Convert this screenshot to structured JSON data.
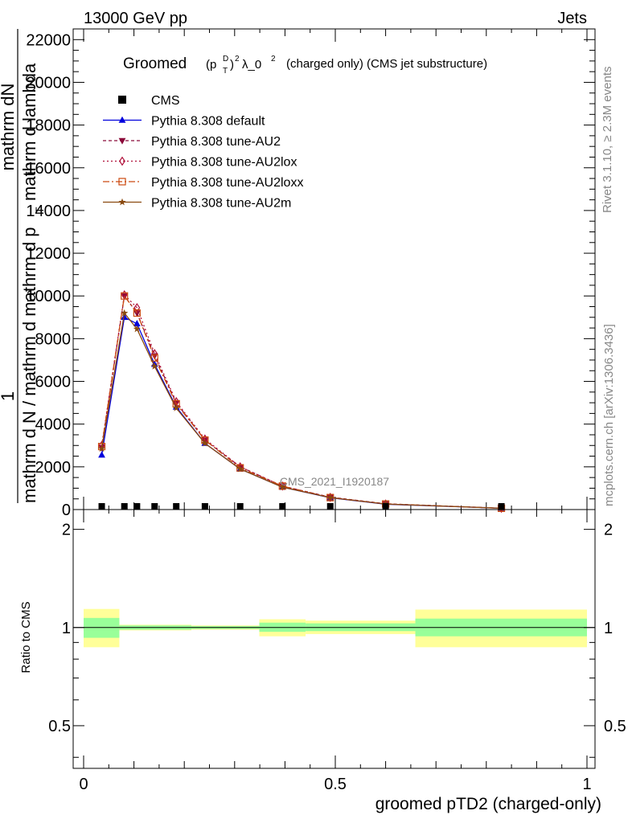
{
  "header": {
    "left": "13000 GeV pp",
    "right": "Jets"
  },
  "plot_title": {
    "prefix": "Groomed",
    "p": "(p",
    "sub": "T",
    "sup": "D",
    "close": ")",
    "sq": "2",
    "lambda": "λ_0",
    "sq2": "2",
    "rest": "(charged only) (CMS jet substructure)"
  },
  "side_labels": {
    "rivet": "Rivet 3.1.10, ≥ 2.3M events",
    "mcplots": "mcplots.cern.ch [arXiv:1306.3436]"
  },
  "watermark": "CMS_2021_I1920187",
  "ylabel_main": {
    "frac_one": "1",
    "denominator": "mathrm d N / mathrm d mathrm d p",
    "sub_T": "T",
    "tail": "mathrm d lambda",
    "numerator": "mathrm dN"
  },
  "ylabel_ratio": "Ratio to CMS",
  "xlabel": "groomed pTD2 (charged-only)",
  "legend": [
    {
      "label": "CMS",
      "color": "#000000",
      "marker": "square",
      "dash": "none"
    },
    {
      "label": "Pythia 8.308 default",
      "color": "#0000dd",
      "marker": "triangle-up",
      "dash": "solid"
    },
    {
      "label": "Pythia 8.308 tune-AU2",
      "color": "#8b0a3a",
      "marker": "triangle-down",
      "dash": "4,3"
    },
    {
      "label": "Pythia 8.308 tune-AU2lox",
      "color": "#b0103a",
      "marker": "diamond-open",
      "dash": "2,3"
    },
    {
      "label": "Pythia 8.308 tune-AU2loxx",
      "color": "#cc4a10",
      "marker": "square-open",
      "dash": "8,3,2,3"
    },
    {
      "label": "Pythia 8.308 tune-AU2m",
      "color": "#8a4a10",
      "marker": "star",
      "dash": "solid"
    }
  ],
  "chart_data": {
    "type": "line",
    "main": {
      "xlim": [
        0,
        1
      ],
      "ylim": [
        0,
        22500
      ],
      "yticks": [
        0,
        2000,
        4000,
        6000,
        8000,
        10000,
        12000,
        14000,
        16000,
        18000,
        20000,
        22000
      ],
      "ytick_labels": [
        "0",
        "2000",
        "4000",
        "6000",
        "8000",
        "10000",
        "12000",
        "14000",
        "16000",
        "18000",
        "20000",
        "22000"
      ]
    },
    "ratio": {
      "xlim": [
        0,
        1
      ],
      "ylim": [
        0.37,
        2.3
      ],
      "log": true,
      "yticks": [
        0.5,
        1,
        2
      ],
      "ytick_labels": [
        "0.5",
        "1",
        "2"
      ]
    },
    "xticks": [
      0,
      0.5,
      1
    ],
    "xtick_labels": [
      "0",
      "0.5",
      "1"
    ],
    "data": {
      "name": "CMS",
      "x": [
        0.036,
        0.081,
        0.106,
        0.141,
        0.184,
        0.241,
        0.311,
        0.395,
        0.49,
        0.6,
        0.83
      ],
      "y": [
        10,
        10,
        10,
        10,
        10,
        10,
        10,
        10,
        10,
        10,
        10
      ]
    },
    "series": [
      {
        "name": "Pythia 8.308 default",
        "x": [
          0.036,
          0.081,
          0.106,
          0.141,
          0.184,
          0.241,
          0.311,
          0.395,
          0.49,
          0.6,
          0.83
        ],
        "y": [
          2550,
          9000,
          8700,
          6800,
          4800,
          3100,
          1900,
          1050,
          550,
          250,
          60
        ]
      },
      {
        "name": "Pythia 8.308 tune-AU2",
        "x": [
          0.036,
          0.081,
          0.106,
          0.141,
          0.184,
          0.241,
          0.311,
          0.395,
          0.49,
          0.6,
          0.83
        ],
        "y": [
          2900,
          10000,
          9200,
          7200,
          5000,
          3250,
          2000,
          1100,
          580,
          270,
          65
        ]
      },
      {
        "name": "Pythia 8.308 tune-AU2lox",
        "x": [
          0.036,
          0.081,
          0.106,
          0.141,
          0.184,
          0.241,
          0.311,
          0.395,
          0.49,
          0.6,
          0.83
        ],
        "y": [
          3000,
          10050,
          9450,
          7300,
          5050,
          3300,
          2000,
          1100,
          570,
          260,
          60
        ]
      },
      {
        "name": "Pythia 8.308 tune-AU2loxx",
        "x": [
          0.036,
          0.081,
          0.106,
          0.141,
          0.184,
          0.241,
          0.311,
          0.395,
          0.49,
          0.6,
          0.83
        ],
        "y": [
          2950,
          10000,
          9200,
          7100,
          4950,
          3250,
          1950,
          1100,
          560,
          260,
          60
        ]
      },
      {
        "name": "Pythia 8.308 tune-AU2m",
        "x": [
          0.036,
          0.081,
          0.106,
          0.141,
          0.184,
          0.241,
          0.311,
          0.395,
          0.49,
          0.6,
          0.83
        ],
        "y": [
          2850,
          9200,
          8450,
          6700,
          4750,
          3100,
          1900,
          1050,
          560,
          260,
          60
        ]
      }
    ],
    "ratio_bands": [
      {
        "x0": 0.0,
        "x1": 0.071,
        "inner": [
          0.93,
          1.07
        ],
        "outer": [
          0.87,
          1.14
        ]
      },
      {
        "x0": 0.071,
        "x1": 0.214,
        "inner": [
          0.985,
          1.015
        ],
        "outer": [
          0.98,
          1.02
        ]
      },
      {
        "x0": 0.214,
        "x1": 0.349,
        "inner": [
          0.99,
          1.01
        ],
        "outer": [
          0.985,
          1.015
        ]
      },
      {
        "x0": 0.349,
        "x1": 0.441,
        "inner": [
          0.97,
          1.035
        ],
        "outer": [
          0.94,
          1.06
        ]
      },
      {
        "x0": 0.441,
        "x1": 0.659,
        "inner": [
          0.975,
          1.03
        ],
        "outer": [
          0.955,
          1.05
        ]
      },
      {
        "x0": 0.659,
        "x1": 1.0,
        "inner": [
          0.94,
          1.065
        ],
        "outer": [
          0.87,
          1.135
        ]
      }
    ],
    "band_colors": {
      "inner": "#99ff99",
      "outer": "#ffff99"
    }
  }
}
